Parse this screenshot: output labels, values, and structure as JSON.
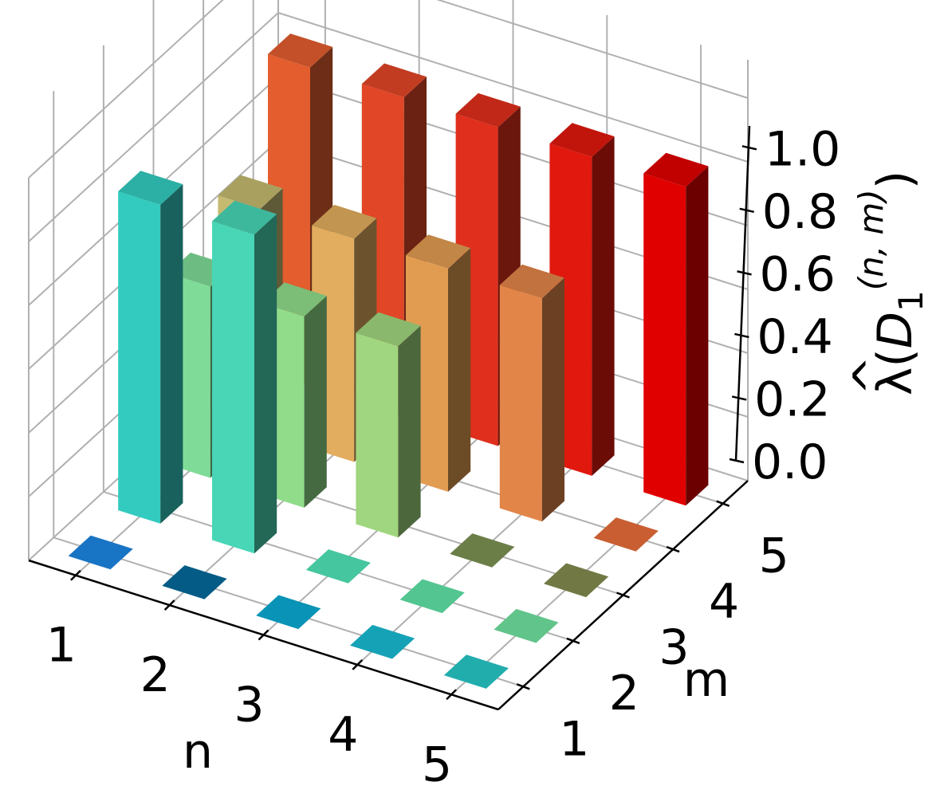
{
  "chart_data": {
    "type": "bar3d",
    "xlabel": "n",
    "ylabel": "m",
    "zlabel": "λ̂(D₁^(n,m))",
    "zlabel_parts": {
      "base": "λ",
      "hat": "^",
      "paren_open": "(",
      "symbol": "D",
      "subscript": "1",
      "superscript": "(n, m)",
      "paren_close": ")"
    },
    "x_ticks": [
      "1",
      "2",
      "3",
      "4",
      "5"
    ],
    "y_ticks": [
      "1",
      "2",
      "3",
      "4",
      "5"
    ],
    "z_ticks": [
      "0.0",
      "0.2",
      "0.4",
      "0.6",
      "0.8",
      "1.0"
    ],
    "zlim": [
      0,
      1.0
    ],
    "grid": true,
    "bars": [
      {
        "n": 1,
        "m": 1,
        "value": 0.0,
        "color": "#1874c4"
      },
      {
        "n": 2,
        "m": 1,
        "value": 0.0,
        "color": "#035b86"
      },
      {
        "n": 3,
        "m": 1,
        "value": 0.0,
        "color": "#0993b6"
      },
      {
        "n": 4,
        "m": 1,
        "value": 0.0,
        "color": "#16a2b6"
      },
      {
        "n": 5,
        "m": 1,
        "value": 0.0,
        "color": "#22adad"
      },
      {
        "n": 1,
        "m": 2,
        "value": 1.0,
        "color": "#33cbbf"
      },
      {
        "n": 2,
        "m": 2,
        "value": 1.0,
        "color": "#48d6b6"
      },
      {
        "n": 3,
        "m": 2,
        "value": 0.0,
        "color": "#45c69e"
      },
      {
        "n": 4,
        "m": 2,
        "value": 0.0,
        "color": "#52c591"
      },
      {
        "n": 5,
        "m": 2,
        "value": 0.0,
        "color": "#61c48a"
      },
      {
        "n": 1,
        "m": 3,
        "value": 0.6,
        "color": "#7fdc98"
      },
      {
        "n": 2,
        "m": 3,
        "value": 0.6,
        "color": "#90dc8a"
      },
      {
        "n": 3,
        "m": 3,
        "value": 0.6,
        "color": "#a0d67f"
      },
      {
        "n": 4,
        "m": 3,
        "value": 0.0,
        "color": "#6b7e48"
      },
      {
        "n": 5,
        "m": 3,
        "value": 0.0,
        "color": "#717844"
      },
      {
        "n": 1,
        "m": 4,
        "value": 0.7,
        "color": "#c4ba70"
      },
      {
        "n": 2,
        "m": 4,
        "value": 0.7,
        "color": "#e2ad5e"
      },
      {
        "n": 3,
        "m": 4,
        "value": 0.7,
        "color": "#e29c52"
      },
      {
        "n": 4,
        "m": 4,
        "value": 0.7,
        "color": "#e28548"
      },
      {
        "n": 5,
        "m": 4,
        "value": 0.0,
        "color": "#c85e32"
      },
      {
        "n": 1,
        "m": 5,
        "value": 1.0,
        "color": "#e35d2e"
      },
      {
        "n": 2,
        "m": 5,
        "value": 1.0,
        "color": "#e14626"
      },
      {
        "n": 3,
        "m": 5,
        "value": 1.0,
        "color": "#e02f1c"
      },
      {
        "n": 4,
        "m": 5,
        "value": 1.0,
        "color": "#e0180e"
      },
      {
        "n": 5,
        "m": 5,
        "value": 1.0,
        "color": "#e00000"
      }
    ]
  }
}
